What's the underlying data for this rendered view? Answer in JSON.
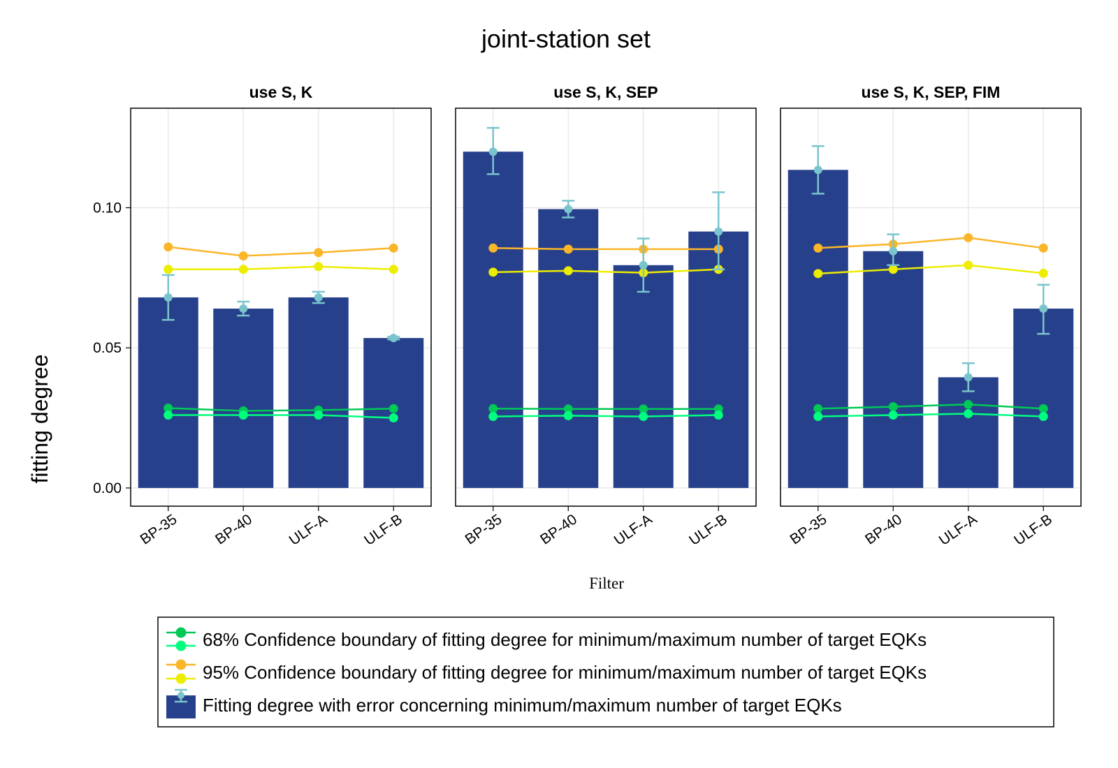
{
  "chart_data": {
    "type": "bar",
    "title": "joint-station set",
    "xlabel": "Filter",
    "ylabel": "fitting degree",
    "ylim": [
      -0.0065,
      0.1355
    ],
    "yticks": [
      "0.00",
      "0.05",
      "0.10"
    ],
    "ytick_values": [
      0,
      0.05,
      0.1
    ],
    "categories": [
      "BP-35",
      "BP-40",
      "ULF-A",
      "ULF-B"
    ],
    "grid": true,
    "legend_position": "bottom",
    "colors": {
      "bar": "#27408b",
      "errorbar": "#7ac5cd",
      "c68_min": "#00c957",
      "c68_max": "#00ff7f",
      "c95_min": "#fbb528",
      "c95_max": "#eded00"
    },
    "legend": [
      "68% Confidence boundary of fitting degree for minimum/maximum number of target EQKs",
      "95% Confidence boundary of fitting degree for minimum/maximum number of target EQKs",
      "Fitting degree with error concerning minimum/maximum number of target EQKs"
    ],
    "panels": [
      {
        "title": "use S, K",
        "bars": [
          0.068,
          0.064,
          0.068,
          0.0535
        ],
        "points": [
          0.068,
          0.064,
          0.068,
          0.0535
        ],
        "err_low": [
          0.06,
          0.0615,
          0.066,
          0.053
        ],
        "err_high": [
          0.076,
          0.0665,
          0.07,
          0.054
        ],
        "c68_min": [
          0.0285,
          0.0275,
          0.0278,
          0.0283
        ],
        "c68_max": [
          0.026,
          0.026,
          0.026,
          0.025
        ],
        "c95_min": [
          0.086,
          0.0828,
          0.084,
          0.0856
        ],
        "c95_max": [
          0.078,
          0.078,
          0.079,
          0.078
        ]
      },
      {
        "title": "use S, K, SEP",
        "bars": [
          0.12,
          0.0995,
          0.0795,
          0.0915
        ],
        "points": [
          0.12,
          0.0995,
          0.0795,
          0.0915
        ],
        "err_low": [
          0.112,
          0.0965,
          0.07,
          0.078
        ],
        "err_high": [
          0.1285,
          0.1025,
          0.089,
          0.1055
        ],
        "c68_min": [
          0.0283,
          0.0282,
          0.0282,
          0.0282
        ],
        "c68_max": [
          0.0255,
          0.0258,
          0.0255,
          0.026
        ],
        "c95_min": [
          0.0856,
          0.0852,
          0.0852,
          0.0852
        ],
        "c95_max": [
          0.077,
          0.0775,
          0.0768,
          0.078
        ]
      },
      {
        "title": "use S, K, SEP, FIM",
        "bars": [
          0.1135,
          0.0845,
          0.0395,
          0.064
        ],
        "points": [
          0.1135,
          0.0845,
          0.0395,
          0.064
        ],
        "err_low": [
          0.105,
          0.0795,
          0.0345,
          0.055
        ],
        "err_high": [
          0.122,
          0.0905,
          0.0445,
          0.0725
        ],
        "c68_min": [
          0.0283,
          0.029,
          0.0298,
          0.0283
        ],
        "c68_max": [
          0.0255,
          0.026,
          0.0265,
          0.0255
        ],
        "c95_min": [
          0.0856,
          0.087,
          0.0893,
          0.0856
        ],
        "c95_max": [
          0.0765,
          0.078,
          0.0795,
          0.0766
        ]
      }
    ]
  }
}
